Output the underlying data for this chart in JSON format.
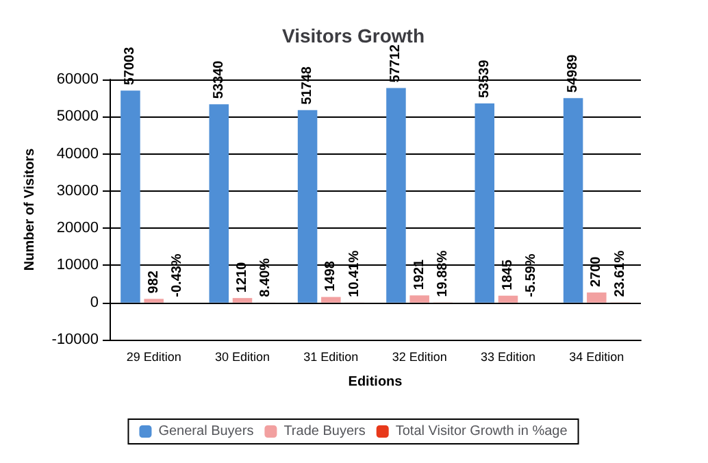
{
  "chart_data": {
    "type": "bar",
    "title": "Visitors Growth",
    "xlabel": "Editions",
    "ylabel": "Number of Visitors",
    "categories": [
      "29 Edition",
      "30 Edition",
      "31 Edition",
      "32 Edition",
      "33 Edition",
      "34 Edition"
    ],
    "series": [
      {
        "name": "General Buyers",
        "color": "#4f8fd6",
        "values": [
          57003,
          53340,
          51748,
          57712,
          53539,
          54989
        ],
        "value_labels": [
          "57003",
          "53340",
          "51748",
          "57712",
          "53539",
          "54989"
        ]
      },
      {
        "name": "Trade Buyers",
        "color": "#f2a0a0",
        "values": [
          982,
          1210,
          1498,
          1921,
          1845,
          2700
        ],
        "value_labels": [
          "982",
          "1210",
          "1498",
          "1921",
          "1845",
          "2700"
        ]
      },
      {
        "name": "Total Visitor Growth in %age",
        "color": "#e8391b",
        "values": [
          -0.43,
          8.4,
          10.41,
          19.88,
          -5.59,
          23.61
        ],
        "value_labels": [
          "-0.43%",
          "8.40%",
          "10.41%",
          "19.88%",
          "-5.59%",
          "23.61%"
        ]
      }
    ],
    "ylim": [
      -10000,
      60000
    ],
    "yticks": [
      -10000,
      0,
      10000,
      20000,
      30000,
      40000,
      50000,
      60000
    ],
    "grid": "y",
    "legend": "bottom"
  }
}
